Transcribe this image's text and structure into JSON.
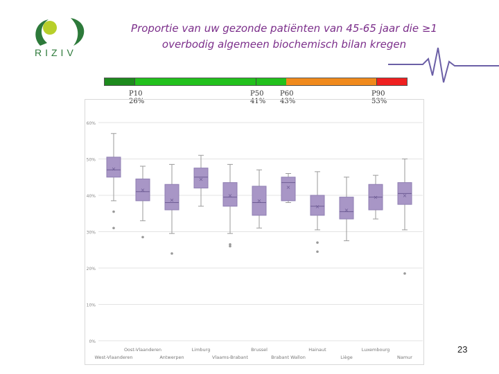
{
  "logo": {
    "text": "RIZIV",
    "green": "#2d7a3a",
    "lime": "#b7cf2a"
  },
  "title": "Proportie van uw gezonde patiënten van 45-65 jaar die ≥1 overbodig algemeen biochemisch bilan kregen",
  "percentile_bar": {
    "colors": [
      "#1d8a1d",
      "#22c01c",
      "#f08a1c",
      "#ef2020"
    ],
    "markers": [
      {
        "label": "P10",
        "value": "26%"
      },
      {
        "label": "P50",
        "value": "41%"
      },
      {
        "label": "P60",
        "value": "43%"
      },
      {
        "label": "P90",
        "value": "53%"
      }
    ]
  },
  "page_number": "23",
  "chart_data": {
    "type": "box",
    "ylim": [
      0,
      60
    ],
    "yticks": [
      "0%",
      "10%",
      "20%",
      "30%",
      "40%",
      "50%",
      "60%"
    ],
    "box_color": "#a896c6",
    "categories": [
      "West-Vlaanderen",
      "Oost-Vlaanderen",
      "Antwerpen",
      "Limburg",
      "Vlaams-Brabant",
      "Brussel",
      "Brabant Wallon",
      "Hainaut",
      "Liège",
      "Luxembourg",
      "Namur"
    ],
    "boxes": [
      {
        "min": 38.5,
        "q1": 45,
        "median": 47,
        "q3": 50.5,
        "max": 57,
        "mean": 47.3,
        "outliers": [
          35.5,
          31
        ]
      },
      {
        "min": 33,
        "q1": 38.5,
        "median": 41,
        "q3": 44.5,
        "max": 48,
        "mean": 41.5,
        "outliers": [
          28.5
        ]
      },
      {
        "min": 29.5,
        "q1": 36,
        "median": 38,
        "q3": 43,
        "max": 48.5,
        "mean": 38.8,
        "outliers": [
          24
        ]
      },
      {
        "min": 37,
        "q1": 42,
        "median": 45,
        "q3": 47.5,
        "max": 51,
        "mean": 44.5,
        "outliers": []
      },
      {
        "min": 29.5,
        "q1": 37,
        "median": 39.5,
        "q3": 43.5,
        "max": 48.5,
        "mean": 40,
        "outliers": [
          26.5,
          26
        ]
      },
      {
        "min": 31,
        "q1": 34.5,
        "median": 38,
        "q3": 42.5,
        "max": 47,
        "mean": 38.6,
        "outliers": []
      },
      {
        "min": 38,
        "q1": 38.5,
        "median": 43.5,
        "q3": 45,
        "max": 46,
        "mean": 42.3,
        "outliers": []
      },
      {
        "min": 30.5,
        "q1": 34.5,
        "median": 37,
        "q3": 40,
        "max": 46.5,
        "mean": 37,
        "outliers": [
          27,
          24.5
        ]
      },
      {
        "min": 27.5,
        "q1": 33.5,
        "median": 35.5,
        "q3": 39.5,
        "max": 45,
        "mean": 36,
        "outliers": []
      },
      {
        "min": 33.5,
        "q1": 36,
        "median": 39.5,
        "q3": 43,
        "max": 45.5,
        "mean": 39.5,
        "outliers": []
      },
      {
        "min": 30.5,
        "q1": 37.5,
        "median": 40.5,
        "q3": 43.5,
        "max": 50,
        "mean": 40,
        "outliers": [
          18.5
        ]
      }
    ]
  }
}
